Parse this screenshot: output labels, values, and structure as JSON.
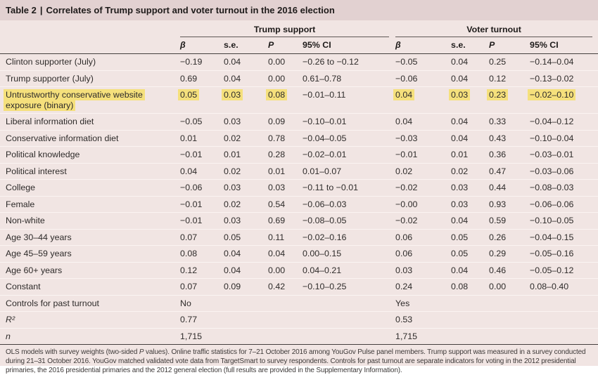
{
  "title": {
    "prefix": "Table 2",
    "separator": "|",
    "text": "Correlates of Trump support and voter turnout in the 2016 election"
  },
  "table": {
    "groups": [
      {
        "label": "Trump support"
      },
      {
        "label": "Voter turnout"
      }
    ],
    "columns": [
      "β",
      "s.e.",
      "P",
      "95% CI",
      "β",
      "s.e.",
      "P",
      "95% CI"
    ],
    "rows": [
      {
        "label": "Clinton supporter (July)",
        "cells": [
          "−0.19",
          "0.04",
          "0.00",
          "−0.26 to −0.12",
          "−0.05",
          "0.04",
          "0.25",
          "−0.14–0.04"
        ]
      },
      {
        "label": "Trump supporter (July)",
        "cells": [
          "0.69",
          "0.04",
          "0.00",
          "0.61–0.78",
          "−0.06",
          "0.04",
          "0.12",
          "−0.13–0.02"
        ]
      },
      {
        "label": "Untrustworthy conservative website exposure (binary)",
        "highlight_label": true,
        "highlight": [
          true,
          true,
          true,
          false,
          true,
          true,
          true,
          true
        ],
        "cells": [
          "0.05",
          "0.03",
          "0.08",
          "−0.01–0.11",
          "0.04",
          "0.03",
          "0.23",
          "−0.02–0.10"
        ]
      },
      {
        "label": "Liberal information diet",
        "cells": [
          "−0.05",
          "0.03",
          "0.09",
          "−0.10–0.01",
          "0.04",
          "0.04",
          "0.33",
          "−0.04–0.12"
        ]
      },
      {
        "label": "Conservative information diet",
        "cells": [
          "0.01",
          "0.02",
          "0.78",
          "−0.04–0.05",
          "−0.03",
          "0.04",
          "0.43",
          "−0.10–0.04"
        ]
      },
      {
        "label": "Political knowledge",
        "cells": [
          "−0.01",
          "0.01",
          "0.28",
          "−0.02–0.01",
          "−0.01",
          "0.01",
          "0.36",
          "−0.03–0.01"
        ]
      },
      {
        "label": "Political interest",
        "cells": [
          "0.04",
          "0.02",
          "0.01",
          "0.01–0.07",
          "0.02",
          "0.02",
          "0.47",
          "−0.03–0.06"
        ]
      },
      {
        "label": "College",
        "cells": [
          "−0.06",
          "0.03",
          "0.03",
          "−0.11 to −0.01",
          "−0.02",
          "0.03",
          "0.44",
          "−0.08–0.03"
        ]
      },
      {
        "label": "Female",
        "cells": [
          "−0.01",
          "0.02",
          "0.54",
          "−0.06–0.03",
          "−0.00",
          "0.03",
          "0.93",
          "−0.06–0.06"
        ]
      },
      {
        "label": "Non-white",
        "cells": [
          "−0.01",
          "0.03",
          "0.69",
          "−0.08–0.05",
          "−0.02",
          "0.04",
          "0.59",
          "−0.10–0.05"
        ]
      },
      {
        "label": "Age 30–44 years",
        "cells": [
          "0.07",
          "0.05",
          "0.11",
          "−0.02–0.16",
          "0.06",
          "0.05",
          "0.26",
          "−0.04–0.15"
        ]
      },
      {
        "label": "Age 45–59 years",
        "cells": [
          "0.08",
          "0.04",
          "0.04",
          "0.00–0.15",
          "0.06",
          "0.05",
          "0.29",
          "−0.05–0.16"
        ]
      },
      {
        "label": "Age 60+ years",
        "cells": [
          "0.12",
          "0.04",
          "0.00",
          "0.04–0.21",
          "0.03",
          "0.04",
          "0.46",
          "−0.05–0.12"
        ]
      },
      {
        "label": "Constant",
        "cells": [
          "0.07",
          "0.09",
          "0.42",
          "−0.10–0.25",
          "0.24",
          "0.08",
          "0.00",
          "0.08–0.40"
        ]
      },
      {
        "label": "Controls for past turnout",
        "cells": [
          "No",
          "",
          "",
          "",
          "Yes",
          "",
          "",
          ""
        ]
      },
      {
        "label": "R²",
        "italic_label": true,
        "cells": [
          "0.77",
          "",
          "",
          "",
          "0.53",
          "",
          "",
          ""
        ]
      },
      {
        "label": "n",
        "italic_label": true,
        "cells": [
          "1,715",
          "",
          "",
          "",
          "1,715",
          "",
          "",
          ""
        ]
      }
    ]
  },
  "footnote": {
    "before": "OLS models with survey weights (two-sided ",
    "p_italic": "P",
    "after": " values). Online traffic statistics for 7–21 October 2016 among YouGov Pulse panel members. Trump support was measured in a survey conducted during 21–31 October 2016. YouGov matched validated vote data from TargetSmart to survey respondents. Controls for past turnout are separate indicators for voting in the 2012 presidential primaries, the 2016 presidential primaries and the 2012 general election (full results are provided in the Supplementary Information)."
  },
  "colors": {
    "title_band_bg": "#e2d1d1",
    "body_bg": "#f1e5e3",
    "highlight": "#f5e07c",
    "dark_rule": "#443f3e",
    "row_separator": "#fbf4f2"
  }
}
